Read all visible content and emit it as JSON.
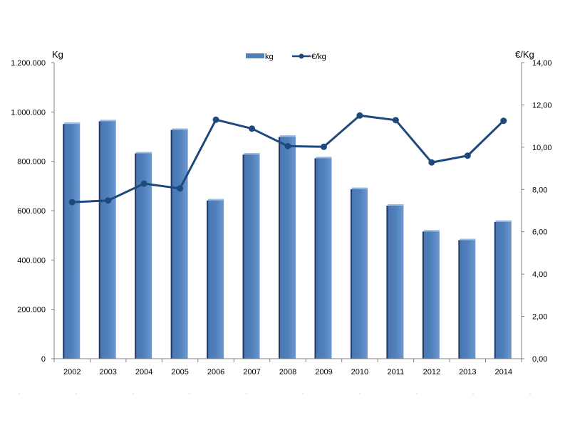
{
  "chart_data": {
    "type": "bar",
    "categories": [
      "2002",
      "2003",
      "2004",
      "2005",
      "2006",
      "2007",
      "2008",
      "2009",
      "2010",
      "2011",
      "2012",
      "2013",
      "2014"
    ],
    "series": [
      {
        "name": "kg",
        "type": "bar",
        "axis": "left",
        "values": [
          957000,
          968000,
          838000,
          933000,
          647000,
          833000,
          905000,
          818000,
          693000,
          626000,
          521000,
          486000,
          560000
        ]
      },
      {
        "name": "€/kg",
        "type": "line",
        "axis": "right",
        "values": [
          7.4,
          7.48,
          8.28,
          8.05,
          11.3,
          10.88,
          10.05,
          10.02,
          11.5,
          11.28,
          9.28,
          9.6,
          11.25
        ]
      }
    ],
    "ylabel": "Kg",
    "y2label": "€/Kg",
    "ylim": [
      0,
      1200000
    ],
    "y2lim": [
      0,
      14
    ],
    "y_ticks": [
      "0",
      "200.000",
      "400.000",
      "600.000",
      "800.000",
      "1.000.000",
      "1.200.000"
    ],
    "y2_ticks": [
      "0,00",
      "2,00",
      "4,00",
      "6,00",
      "8,00",
      "10,00",
      "12,00",
      "14,00"
    ],
    "legend_position": "top-center",
    "grid": false,
    "colors": {
      "bar": "#4f81bd",
      "bar_dark": "#1f3a66",
      "line": "#1f497d"
    }
  }
}
